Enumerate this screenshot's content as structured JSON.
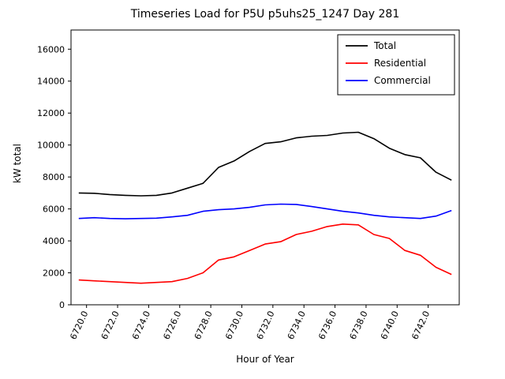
{
  "chart_data": {
    "type": "line",
    "title": "Timeseries Load for P5U p5uhs25_1247  Day 281",
    "xlabel": "Hour of Year",
    "ylabel": "kW total",
    "xlim": [
      6719,
      6744
    ],
    "ylim": [
      0,
      17200
    ],
    "grid": false,
    "legend_position": "upper right",
    "xticks": [
      6720,
      6722,
      6724,
      6726,
      6728,
      6730,
      6732,
      6734,
      6736,
      6738,
      6740,
      6742
    ],
    "xtick_labels": [
      "6720.0",
      "6722.0",
      "6724.0",
      "6726.0",
      "6728.0",
      "6730.0",
      "6732.0",
      "6734.0",
      "6736.0",
      "6738.0",
      "6740.0",
      "6742.0"
    ],
    "yticks": [
      0,
      2000,
      4000,
      6000,
      8000,
      10000,
      12000,
      14000,
      16000
    ],
    "ytick_labels": [
      "0",
      "2000",
      "4000",
      "6000",
      "8000",
      "10000",
      "12000",
      "14000",
      "16000"
    ],
    "x": [
      6719.5,
      6720.5,
      6721.5,
      6722.5,
      6723.5,
      6724.5,
      6725.5,
      6726.5,
      6727.5,
      6728.5,
      6729.5,
      6730.5,
      6731.5,
      6732.5,
      6733.5,
      6734.5,
      6735.5,
      6736.5,
      6737.5,
      6738.5,
      6739.5,
      6740.5,
      6741.5,
      6742.5,
      6743.5
    ],
    "series": [
      {
        "name": "Total",
        "color": "#000000",
        "values": [
          7000,
          6980,
          6900,
          6850,
          6820,
          6850,
          7000,
          7300,
          7600,
          8600,
          9000,
          9600,
          10100,
          10200,
          10450,
          10550,
          10600,
          10750,
          10800,
          10400,
          9800,
          9400,
          9200,
          8300,
          7800
        ]
      },
      {
        "name": "Residential",
        "color": "#ff0000",
        "values": [
          1550,
          1500,
          1450,
          1400,
          1350,
          1400,
          1450,
          1650,
          2000,
          2800,
          3000,
          3400,
          3800,
          3950,
          4400,
          4600,
          4900,
          5050,
          5000,
          4400,
          4150,
          3400,
          3100,
          2350,
          1900
        ]
      },
      {
        "name": "Commercial",
        "color": "#0000ff",
        "values": [
          5400,
          5450,
          5400,
          5380,
          5400,
          5420,
          5500,
          5600,
          5850,
          5950,
          6000,
          6100,
          6250,
          6300,
          6280,
          6150,
          6000,
          5850,
          5750,
          5600,
          5500,
          5450,
          5400,
          5550,
          5900
        ]
      }
    ]
  }
}
